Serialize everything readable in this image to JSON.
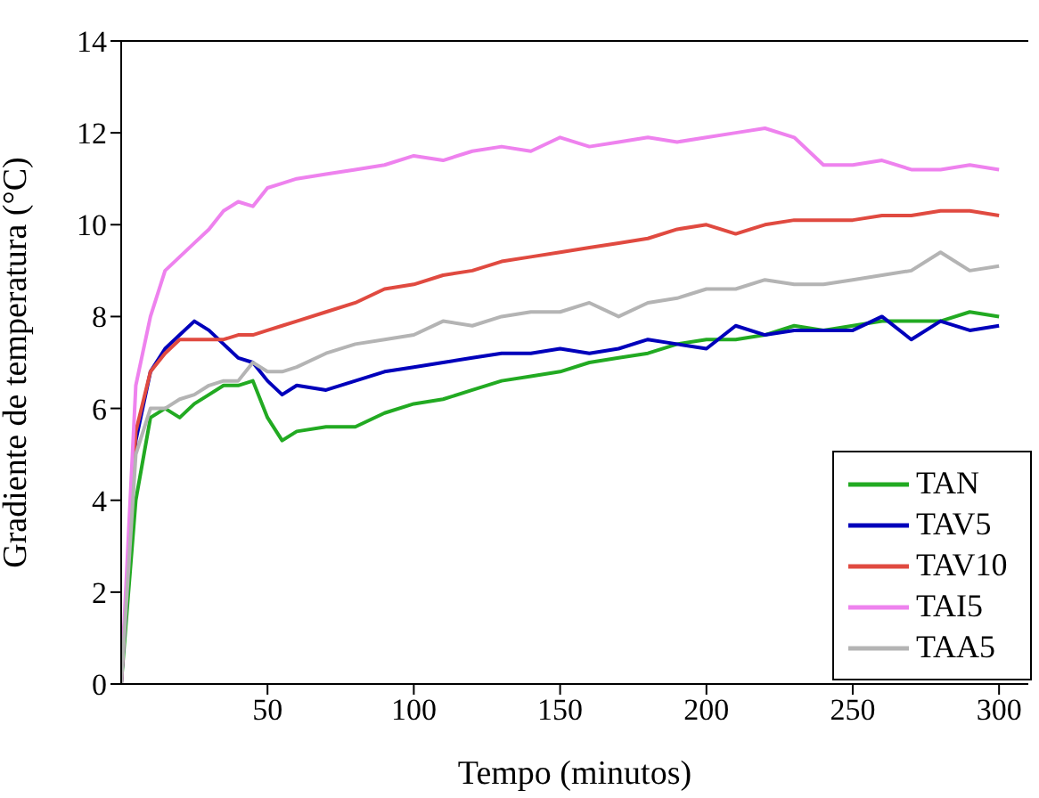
{
  "chart_data": {
    "type": "line",
    "xlabel": "Tempo (minutos)",
    "ylabel": "Gradiente de temperatura (°C)",
    "x": [
      0,
      5,
      10,
      15,
      20,
      25,
      30,
      35,
      40,
      45,
      50,
      55,
      60,
      70,
      80,
      90,
      100,
      110,
      120,
      130,
      140,
      150,
      160,
      170,
      180,
      190,
      200,
      210,
      220,
      230,
      240,
      250,
      260,
      270,
      280,
      290,
      300
    ],
    "xlim": [
      0,
      310
    ],
    "xticks": [
      50,
      100,
      150,
      200,
      250,
      300
    ],
    "ylim": [
      0,
      14
    ],
    "yticks": [
      0,
      2,
      4,
      6,
      8,
      10,
      12,
      14
    ],
    "legend": "bottom right",
    "grid": false,
    "marker": "none",
    "line_style": "solid",
    "series": [
      {
        "name": "TAN",
        "color": "#22aa22",
        "values": [
          0,
          4,
          5.8,
          6,
          5.8,
          6.1,
          6.3,
          6.5,
          6.5,
          6.6,
          5.8,
          5.3,
          5.5,
          5.6,
          5.6,
          5.9,
          6.1,
          6.2,
          6.4,
          6.6,
          6.7,
          6.8,
          7,
          7.1,
          7.2,
          7.4,
          7.5,
          7.5,
          7.6,
          7.8,
          7.7,
          7.8,
          7.9,
          7.9,
          7.9,
          8.1,
          8
        ]
      },
      {
        "name": "TAV5",
        "color": "#0000bb",
        "values": [
          0,
          5.3,
          6.8,
          7.3,
          7.6,
          7.9,
          7.7,
          7.4,
          7.1,
          7,
          6.6,
          6.3,
          6.5,
          6.4,
          6.6,
          6.8,
          6.9,
          7,
          7.1,
          7.2,
          7.2,
          7.3,
          7.2,
          7.3,
          7.5,
          7.4,
          7.3,
          7.8,
          7.6,
          7.7,
          7.7,
          7.7,
          8,
          7.5,
          7.9,
          7.7,
          7.8
        ]
      },
      {
        "name": "TAV10",
        "color": "#e04a40",
        "values": [
          0,
          5.5,
          6.8,
          7.2,
          7.5,
          7.5,
          7.5,
          7.5,
          7.6,
          7.6,
          7.7,
          7.8,
          7.9,
          8.1,
          8.3,
          8.6,
          8.7,
          8.9,
          9,
          9.2,
          9.3,
          9.4,
          9.5,
          9.6,
          9.7,
          9.9,
          10,
          9.8,
          10,
          10.1,
          10.1,
          10.1,
          10.2,
          10.2,
          10.3,
          10.3,
          10.2
        ]
      },
      {
        "name": "TAI5",
        "color": "#ee82ee",
        "values": [
          0,
          6.5,
          8,
          9,
          9.3,
          9.6,
          9.9,
          10.3,
          10.5,
          10.4,
          10.8,
          10.9,
          11,
          11.1,
          11.2,
          11.3,
          11.5,
          11.4,
          11.6,
          11.7,
          11.6,
          11.9,
          11.7,
          11.8,
          11.9,
          11.8,
          11.9,
          12,
          12.1,
          11.9,
          11.3,
          11.3,
          11.4,
          11.2,
          11.2,
          11.3,
          11.2
        ]
      },
      {
        "name": "TAA5",
        "color": "#b4b4b4",
        "values": [
          0,
          5,
          6,
          6,
          6.2,
          6.3,
          6.5,
          6.6,
          6.6,
          7,
          6.8,
          6.8,
          6.9,
          7.2,
          7.4,
          7.5,
          7.6,
          7.9,
          7.8,
          8,
          8.1,
          8.1,
          8.3,
          8,
          8.3,
          8.4,
          8.6,
          8.6,
          8.8,
          8.7,
          8.7,
          8.8,
          8.9,
          9,
          9.4,
          9,
          9.1
        ]
      }
    ]
  }
}
